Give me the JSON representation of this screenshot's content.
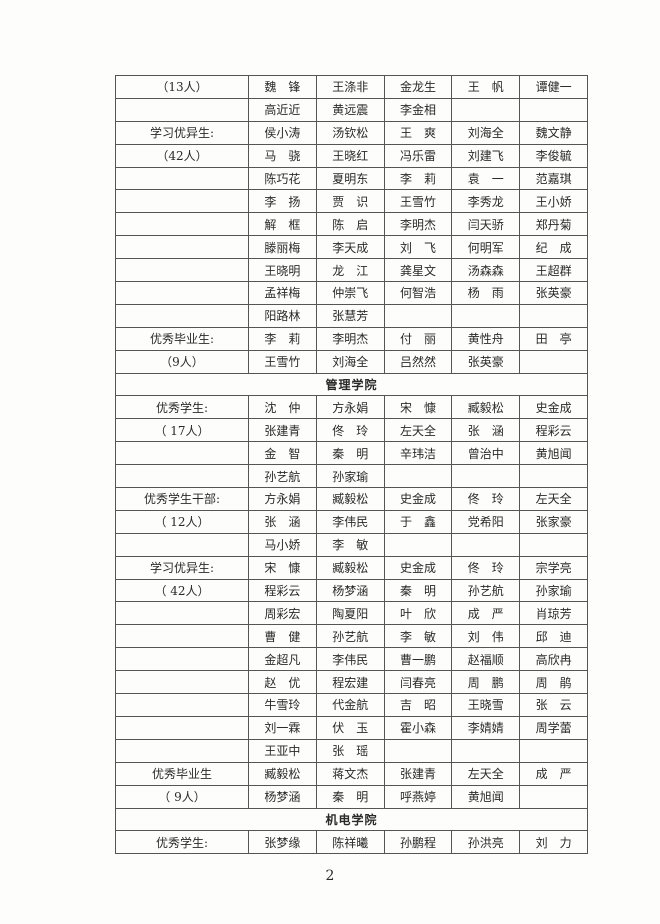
{
  "rows": [
    {
      "label": "（13人）",
      "names": [
        "魏　锋",
        "王涤非",
        "金龙生",
        "王　帆",
        "谭健一"
      ]
    },
    {
      "label": "",
      "names": [
        "高近近",
        "黄远震",
        "李金相",
        "",
        ""
      ]
    },
    {
      "label": "学习优异生:",
      "names": [
        "侯小涛",
        "汤钦松",
        "王　爽",
        "刘海全",
        "魏文静"
      ]
    },
    {
      "label": "（42人）",
      "names": [
        "马　骁",
        "王晓红",
        "冯乐雷",
        "刘建飞",
        "李俊毓"
      ]
    },
    {
      "label": "",
      "names": [
        "陈巧花",
        "夏明东",
        "李　莉",
        "袁　一",
        "范嘉琪"
      ]
    },
    {
      "label": "",
      "names": [
        "李　扬",
        "贾　识",
        "王雪竹",
        "李秀龙",
        "王小娇"
      ]
    },
    {
      "label": "",
      "names": [
        "解　框",
        "陈　启",
        "李明杰",
        "闫天骄",
        "郑丹菊"
      ]
    },
    {
      "label": "",
      "names": [
        "滕丽梅",
        "李天成",
        "刘　飞",
        "何明军",
        "纪　成"
      ]
    },
    {
      "label": "",
      "names": [
        "王晓明",
        "龙　江",
        "龚星文",
        "汤森森",
        "王超群"
      ]
    },
    {
      "label": "",
      "names": [
        "孟祥梅",
        "仲崇飞",
        "何智浩",
        "杨　雨",
        "张英豪"
      ]
    },
    {
      "label": "",
      "names": [
        "阳路林",
        "张慧芳",
        "",
        "",
        ""
      ]
    },
    {
      "label": "优秀毕业生:",
      "names": [
        "李　莉",
        "李明杰",
        "付　丽",
        "黄性舟",
        "田　亭"
      ]
    },
    {
      "label": "（9人）",
      "names": [
        "王雪竹",
        "刘海全",
        "吕然然",
        "张英豪",
        ""
      ]
    },
    {
      "header": "管理学院"
    },
    {
      "label": "优秀学生:",
      "names": [
        "沈　仲",
        "方永娟",
        "宋　慷",
        "臧毅松",
        "史金成"
      ]
    },
    {
      "label": "（ 17人）",
      "names": [
        "张建青",
        "佟　玲",
        "左天全",
        "张　涵",
        "程彩云"
      ]
    },
    {
      "label": "",
      "names": [
        "金　智",
        "秦　明",
        "辛玮洁",
        "曾治中",
        "黄旭闻"
      ]
    },
    {
      "label": "",
      "names": [
        "孙艺航",
        "孙家瑜",
        "",
        "",
        ""
      ]
    },
    {
      "label": "优秀学生干部:",
      "names": [
        "方永娟",
        "臧毅松",
        "史金成",
        "佟　玲",
        "左天全"
      ]
    },
    {
      "label": "（ 12人）",
      "names": [
        "张　涵",
        "李伟民",
        "于　鑫",
        "党希阳",
        "张家豪"
      ]
    },
    {
      "label": "",
      "names": [
        "马小娇",
        "李　敏",
        "",
        "",
        ""
      ]
    },
    {
      "label": "学习优异生:",
      "names": [
        "宋　慷",
        "臧毅松",
        "史金成",
        "佟　玲",
        "宗学亮"
      ]
    },
    {
      "label": "（ 42人）",
      "names": [
        "程彩云",
        "杨梦涵",
        "秦　明",
        "孙艺航",
        "孙家瑜"
      ]
    },
    {
      "label": "",
      "names": [
        "周彩宏",
        "陶夏阳",
        "叶　欣",
        "成　严",
        "肖琼芳"
      ]
    },
    {
      "label": "",
      "names": [
        "曹　健",
        "孙艺航",
        "李　敏",
        "刘　伟",
        "邱　迪"
      ]
    },
    {
      "label": "",
      "names": [
        "金超凡",
        "李伟民",
        "曹一鹏",
        "赵福顺",
        "高欣冉"
      ]
    },
    {
      "label": "",
      "names": [
        "赵　优",
        "程宏建",
        "闫春亮",
        "周　鹏",
        "周　鹃"
      ]
    },
    {
      "label": "",
      "names": [
        "牛雪玲",
        "代金航",
        "吉　昭",
        "王晓雪",
        "张　云"
      ]
    },
    {
      "label": "",
      "names": [
        "刘一霖",
        "伏　玉",
        "霍小森",
        "李婧婧",
        "周学蕾"
      ]
    },
    {
      "label": "",
      "names": [
        "王亚中",
        "张　瑶",
        "",
        "",
        ""
      ]
    },
    {
      "label": "优秀毕业生",
      "names": [
        "臧毅松",
        "蒋文杰",
        "张建青",
        "左天全",
        "成　严"
      ]
    },
    {
      "label": "（ 9人）",
      "names": [
        "杨梦涵",
        "秦　明",
        "呼燕婷",
        "黄旭闻",
        ""
      ]
    },
    {
      "header": "机电学院"
    },
    {
      "label": "优秀学生:",
      "names": [
        "张梦缘",
        "陈祥曦",
        "孙鹏程",
        "孙洪亮",
        "刘　力"
      ]
    }
  ],
  "page_number": "2"
}
